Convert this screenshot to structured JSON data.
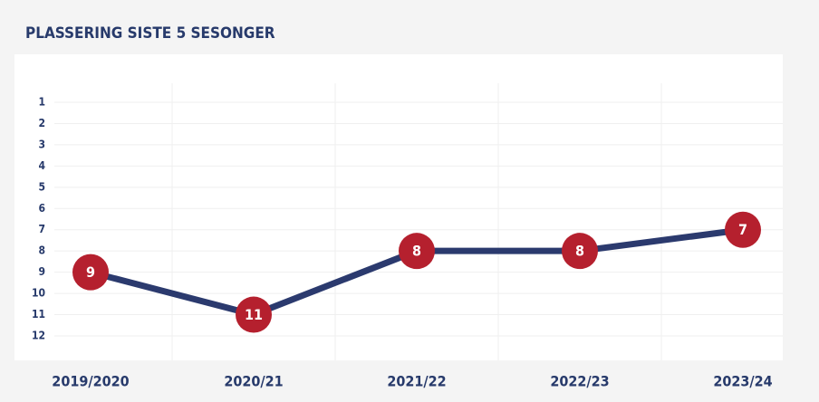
{
  "chart_data": {
    "type": "line",
    "title": "PLASSERING SISTE 5 SESONGER",
    "categories": [
      "2019/2020",
      "2020/21",
      "2021/22",
      "2022/23",
      "2023/24"
    ],
    "series": [
      {
        "color": "#2b3a6e",
        "marker_color": "#b5202e",
        "values": [
          9,
          11,
          8,
          8,
          7
        ]
      }
    ],
    "ylim": [
      12,
      1
    ],
    "yticks": [
      1,
      2,
      3,
      4,
      5,
      6,
      7,
      8,
      9,
      10,
      11,
      12
    ],
    "grid": true
  }
}
